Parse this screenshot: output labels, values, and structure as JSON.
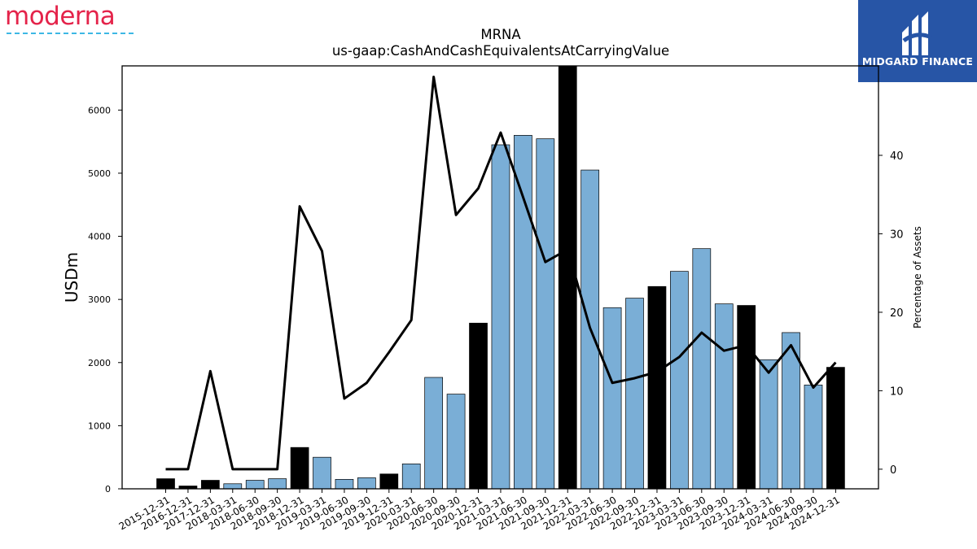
{
  "logos": {
    "left_text": "moderna",
    "right_text": "MIDGARD FINANCE"
  },
  "colors": {
    "bar_regular": "#7aaed6",
    "bar_year_end": "#000000",
    "line": "#000000",
    "brand_red": "#e4234a",
    "brand_dash": "#3db7e4",
    "midgard_bg": "#2755a6"
  },
  "chart_data": {
    "type": "bar",
    "title": "MRNA",
    "subtitle": "us-gaap:CashAndCashEquivalentsAtCarryingValue",
    "ylabel": "USDm",
    "y2label": "Percentage of Assets",
    "ylim": [
      0,
      6700
    ],
    "y2lim": [
      -2.5,
      51.4
    ],
    "yticks": [
      0,
      1000,
      2000,
      3000,
      4000,
      5000,
      6000
    ],
    "y2ticks": [
      0,
      10,
      20,
      30,
      40
    ],
    "categories": [
      "2015-12-31",
      "2016-12-31",
      "2017-12-31",
      "2018-03-31",
      "2018-06-30",
      "2018-09-30",
      "2018-12-31",
      "2019-03-31",
      "2019-06-30",
      "2019-09-30",
      "2019-12-31",
      "2020-03-31",
      "2020-06-30",
      "2020-09-30",
      "2020-12-31",
      "2021-03-31",
      "2021-06-30",
      "2021-09-30",
      "2021-12-31",
      "2022-03-31",
      "2022-06-30",
      "2022-09-30",
      "2022-12-31",
      "2023-03-31",
      "2023-06-30",
      "2023-09-30",
      "2023-12-31",
      "2024-03-31",
      "2024-06-30",
      "2024-09-30",
      "2024-12-31"
    ],
    "series": [
      {
        "kind": "bar",
        "values": [
          160,
          45,
          135,
          80,
          135,
          160,
          655,
          500,
          150,
          175,
          235,
          395,
          1765,
          1500,
          2625,
          5450,
          5600,
          5545,
          6700,
          5050,
          2870,
          3020,
          3205,
          3445,
          3805,
          2930,
          2905,
          2045,
          2475,
          1645,
          1925
        ],
        "year_end": [
          true,
          true,
          true,
          false,
          false,
          false,
          true,
          false,
          false,
          false,
          true,
          false,
          false,
          false,
          true,
          false,
          false,
          false,
          true,
          false,
          false,
          false,
          true,
          false,
          false,
          false,
          true,
          false,
          false,
          false,
          true
        ]
      },
      {
        "kind": "line",
        "axis": "right",
        "values": [
          0,
          0,
          12.5,
          0,
          0,
          0,
          33.5,
          27.8,
          9.0,
          11.0,
          14.9,
          19.0,
          50.0,
          32.4,
          35.8,
          42.9,
          34.7,
          26.4,
          28.0,
          18.0,
          11.0,
          11.6,
          12.4,
          14.3,
          17.4,
          15.1,
          15.8,
          12.3,
          15.8,
          10.4,
          13.6
        ]
      }
    ]
  }
}
